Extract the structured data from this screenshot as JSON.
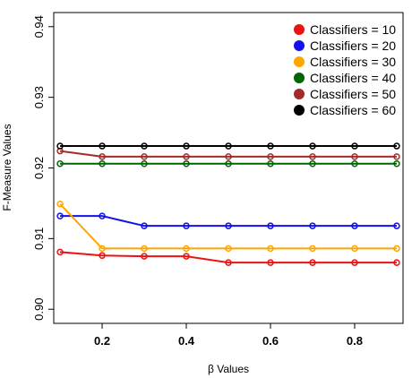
{
  "chart_data": {
    "type": "line",
    "xlabel": "β Values",
    "ylabel": "F-Measure Values",
    "xlim": [
      0.085,
      0.915
    ],
    "ylim": [
      0.898,
      0.942
    ],
    "x_ticks": [
      0.2,
      0.4,
      0.6,
      0.8
    ],
    "x_tick_labels": [
      "0.2",
      "0.4",
      "0.6",
      "0.8"
    ],
    "y_ticks": [
      0.9,
      0.91,
      0.92,
      0.93,
      0.94
    ],
    "y_tick_labels": [
      "0.90",
      "0.91",
      "0.92",
      "0.93",
      "0.94"
    ],
    "grid": false,
    "legend_position": "top-right",
    "x": [
      0.1,
      0.2,
      0.3,
      0.4,
      0.5,
      0.6,
      0.7,
      0.8,
      0.9
    ],
    "series": [
      {
        "name": "Classifiers = 10",
        "color": "#ee1111",
        "values": [
          0.9081,
          0.9076,
          0.9075,
          0.9075,
          0.9066,
          0.9066,
          0.9066,
          0.9066,
          0.9066
        ]
      },
      {
        "name": "Classifiers = 20",
        "color": "#1111ee",
        "values": [
          0.9132,
          0.9132,
          0.9118,
          0.9118,
          0.9118,
          0.9118,
          0.9118,
          0.9118,
          0.9118
        ]
      },
      {
        "name": "Classifiers = 30",
        "color": "#ffa500",
        "values": [
          0.9149,
          0.9086,
          0.9086,
          0.9086,
          0.9086,
          0.9086,
          0.9086,
          0.9086,
          0.9086
        ]
      },
      {
        "name": "Classifiers = 40",
        "color": "#006400",
        "values": [
          0.9206,
          0.9206,
          0.9206,
          0.9206,
          0.9206,
          0.9206,
          0.9206,
          0.9206,
          0.9206
        ]
      },
      {
        "name": "Classifiers = 50",
        "color": "#a52a2a",
        "values": [
          0.9224,
          0.9216,
          0.9216,
          0.9216,
          0.9216,
          0.9216,
          0.9216,
          0.9216,
          0.9216
        ]
      },
      {
        "name": "Classifiers = 60",
        "color": "#000000",
        "values": [
          0.9231,
          0.9231,
          0.9231,
          0.9231,
          0.9231,
          0.9231,
          0.9231,
          0.9231,
          0.9231
        ]
      }
    ]
  }
}
